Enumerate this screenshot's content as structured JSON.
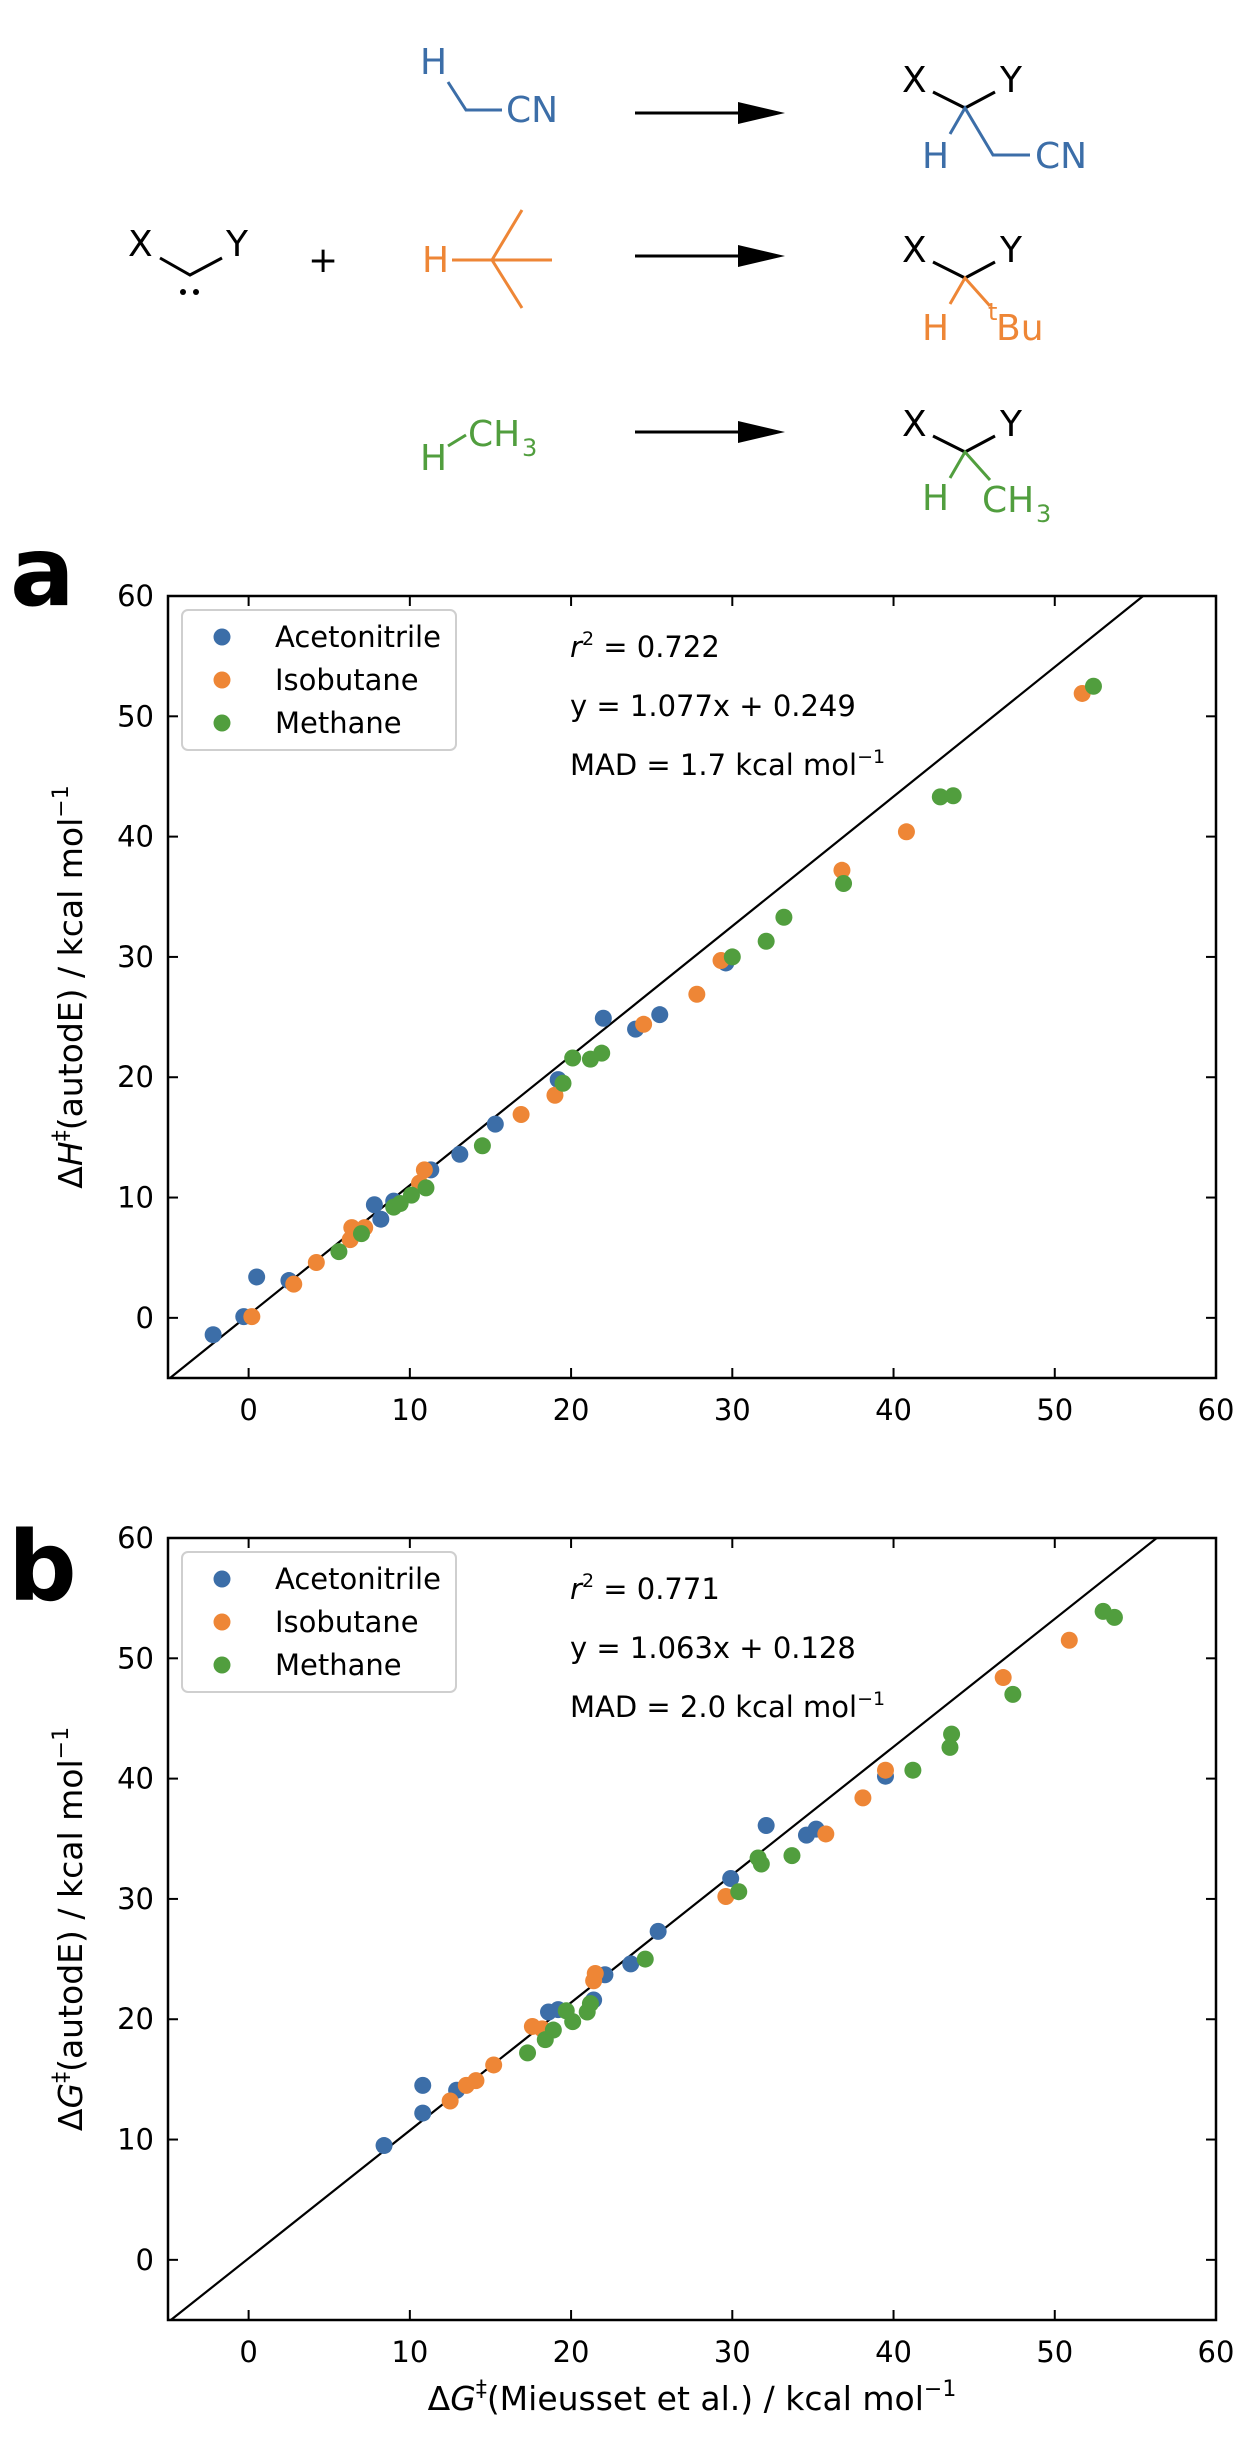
{
  "scheme": {
    "reactant_x": "X",
    "reactant_y": "Y",
    "plus": "+",
    "rows": [
      {
        "name": "acetonitrile",
        "color": "#3c6ea8",
        "reagent_h": "H",
        "reagent_group": "CN",
        "product_x": "X",
        "product_y": "Y",
        "product_h": "H",
        "product_group": "CN"
      },
      {
        "name": "isobutane",
        "color": "#ee8636",
        "reagent_h": "H",
        "reagent_group": "",
        "product_x": "X",
        "product_y": "Y",
        "product_h": "H",
        "product_group_sup": "t",
        "product_group": "Bu"
      },
      {
        "name": "methane",
        "color": "#519e3e",
        "reagent_h": "H",
        "reagent_group": "CH",
        "reagent_group_sub": "3",
        "product_x": "X",
        "product_y": "Y",
        "product_h": "H",
        "product_group": "CH",
        "product_group_sub": "3"
      }
    ]
  },
  "colors": {
    "Acetonitrile": "#3c6ea8",
    "Isobutane": "#ee8636",
    "Methane": "#519e3e"
  },
  "chart_data": [
    {
      "panel_label": "a",
      "type": "scatter",
      "xlabel": "",
      "ylabel_prefix": "Δ",
      "ylabel_var": "H",
      "ylabel_sup": "‡",
      "ylabel_rest": "(autodE) / kcal mol",
      "ylabel_unit_sup": "−1",
      "xlim": [
        -5,
        60
      ],
      "ylim": [
        -5,
        60
      ],
      "xticks": [
        "0",
        "10",
        "20",
        "30",
        "40",
        "50",
        "60"
      ],
      "yticks": [
        "0",
        "10",
        "20",
        "30",
        "40",
        "50",
        "60"
      ],
      "fit_line": {
        "slope": 1.077,
        "intercept": 0.249
      },
      "annotations": {
        "r2_var": "r",
        "r2_sup": "2",
        "r2_value": " = 0.722",
        "equation": "y = 1.077x + 0.249",
        "mad_text": "MAD = 1.7 kcal mol",
        "mad_sup": "−1"
      },
      "legend_position": "top-left",
      "series": [
        {
          "name": "Acetonitrile",
          "color": "#3c6ea8",
          "points": [
            [
              -2.2,
              -1.4
            ],
            [
              -0.3,
              0.1
            ],
            [
              0.5,
              3.4
            ],
            [
              2.5,
              3.1
            ],
            [
              7.8,
              9.4
            ],
            [
              8.2,
              8.2
            ],
            [
              9.0,
              9.7
            ],
            [
              11.3,
              12.3
            ],
            [
              13.1,
              13.6
            ],
            [
              15.3,
              16.1
            ],
            [
              19.2,
              19.8
            ],
            [
              22.0,
              24.9
            ],
            [
              24.0,
              24.0
            ],
            [
              25.5,
              25.2
            ],
            [
              29.6,
              29.5
            ]
          ]
        },
        {
          "name": "Isobutane",
          "color": "#ee8636",
          "points": [
            [
              0.2,
              0.1
            ],
            [
              2.8,
              2.8
            ],
            [
              4.2,
              4.6
            ],
            [
              6.3,
              6.5
            ],
            [
              6.4,
              7.5
            ],
            [
              7.2,
              7.5
            ],
            [
              10.6,
              11.2
            ],
            [
              10.9,
              12.3
            ],
            [
              16.9,
              16.9
            ],
            [
              19.0,
              18.5
            ],
            [
              24.5,
              24.4
            ],
            [
              27.8,
              26.9
            ],
            [
              29.3,
              29.7
            ],
            [
              36.8,
              37.2
            ],
            [
              40.8,
              40.4
            ],
            [
              51.7,
              51.9
            ]
          ]
        },
        {
          "name": "Methane",
          "color": "#519e3e",
          "points": [
            [
              5.6,
              5.5
            ],
            [
              7.0,
              7.0
            ],
            [
              9.0,
              9.2
            ],
            [
              9.4,
              9.5
            ],
            [
              10.1,
              10.2
            ],
            [
              11.0,
              10.8
            ],
            [
              14.5,
              14.3
            ],
            [
              19.5,
              19.5
            ],
            [
              20.1,
              21.6
            ],
            [
              21.2,
              21.5
            ],
            [
              21.9,
              22.0
            ],
            [
              30.0,
              30.0
            ],
            [
              32.1,
              31.3
            ],
            [
              33.2,
              33.3
            ],
            [
              36.9,
              36.1
            ],
            [
              42.9,
              43.3
            ],
            [
              43.7,
              43.4
            ],
            [
              52.4,
              52.5
            ]
          ]
        }
      ]
    },
    {
      "panel_label": "b",
      "type": "scatter",
      "xlabel_prefix": "Δ",
      "xlabel_var": "G",
      "xlabel_sup": "‡",
      "xlabel_rest": "(Mieusset et al.) / kcal mol",
      "xlabel_unit_sup": "−1",
      "ylabel_prefix": "Δ",
      "ylabel_var": "G",
      "ylabel_sup": "‡",
      "ylabel_rest": "(autodE) / kcal mol",
      "ylabel_unit_sup": "−1",
      "xlim": [
        -5,
        60
      ],
      "ylim": [
        -5,
        60
      ],
      "xticks": [
        "0",
        "10",
        "20",
        "30",
        "40",
        "50",
        "60"
      ],
      "yticks": [
        "0",
        "10",
        "20",
        "30",
        "40",
        "50",
        "60"
      ],
      "fit_line": {
        "slope": 1.063,
        "intercept": 0.128
      },
      "annotations": {
        "r2_var": "r",
        "r2_sup": "2",
        "r2_value": " = 0.771",
        "equation": "y = 1.063x + 0.128",
        "mad_text": "MAD = 2.0 kcal mol",
        "mad_sup": "−1"
      },
      "legend_position": "top-left",
      "series": [
        {
          "name": "Acetonitrile",
          "color": "#3c6ea8",
          "points": [
            [
              8.4,
              9.5
            ],
            [
              10.8,
              12.2
            ],
            [
              10.8,
              14.5
            ],
            [
              12.9,
              14.1
            ],
            [
              18.6,
              20.6
            ],
            [
              19.2,
              20.8
            ],
            [
              21.4,
              21.6
            ],
            [
              22.1,
              23.7
            ],
            [
              23.7,
              24.6
            ],
            [
              25.4,
              27.3
            ],
            [
              29.9,
              31.7
            ],
            [
              32.1,
              36.1
            ],
            [
              34.6,
              35.3
            ],
            [
              35.2,
              35.8
            ],
            [
              39.5,
              40.2
            ]
          ]
        },
        {
          "name": "Isobutane",
          "color": "#ee8636",
          "points": [
            [
              12.5,
              13.2
            ],
            [
              13.5,
              14.5
            ],
            [
              14.1,
              14.9
            ],
            [
              15.2,
              16.2
            ],
            [
              17.6,
              19.4
            ],
            [
              18.2,
              19.2
            ],
            [
              21.4,
              23.2
            ],
            [
              21.5,
              23.8
            ],
            [
              29.6,
              30.2
            ],
            [
              35.8,
              35.4
            ],
            [
              38.1,
              38.4
            ],
            [
              39.5,
              40.7
            ],
            [
              46.8,
              48.4
            ],
            [
              50.9,
              51.5
            ]
          ]
        },
        {
          "name": "Methane",
          "color": "#519e3e",
          "points": [
            [
              17.3,
              17.2
            ],
            [
              18.4,
              18.3
            ],
            [
              18.9,
              19.1
            ],
            [
              19.7,
              20.7
            ],
            [
              20.1,
              19.8
            ],
            [
              21.0,
              20.6
            ],
            [
              21.2,
              21.3
            ],
            [
              24.6,
              25.0
            ],
            [
              30.4,
              30.6
            ],
            [
              31.6,
              33.4
            ],
            [
              31.8,
              32.9
            ],
            [
              33.7,
              33.6
            ],
            [
              41.2,
              40.7
            ],
            [
              43.5,
              42.6
            ],
            [
              43.6,
              43.7
            ],
            [
              47.4,
              47.0
            ],
            [
              53.0,
              53.9
            ],
            [
              53.7,
              53.4
            ]
          ]
        }
      ]
    }
  ]
}
